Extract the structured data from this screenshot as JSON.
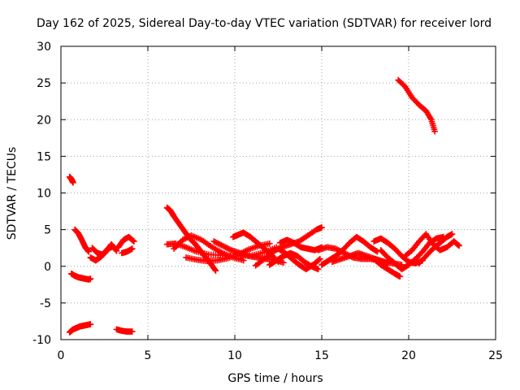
{
  "chart_data": {
    "type": "scatter",
    "title": "Day 162 of 2025, Sidereal Day-to-day VTEC variation (SDTVAR) for receiver lord",
    "xlabel": "GPS time / hours",
    "ylabel": "SDTVAR / TECUs",
    "xlim": [
      0,
      25
    ],
    "ylim": [
      -10,
      30
    ],
    "xticks": [
      0,
      5,
      10,
      15,
      20,
      25
    ],
    "yticks": [
      -10,
      -5,
      0,
      5,
      10,
      15,
      20,
      25,
      30
    ],
    "xtick_labels": [
      "0",
      "5",
      "10",
      "15",
      "20",
      "25"
    ],
    "ytick_labels": [
      "-10",
      "-5",
      "0",
      "5",
      "10",
      "15",
      "20",
      "25",
      "30"
    ],
    "grid": true,
    "marker": "plus",
    "color": "#ff0000",
    "series": [
      {
        "name": "s1",
        "x": [
          0.5,
          0.6,
          0.7
        ],
        "y": [
          12.2,
          11.9,
          11.4
        ]
      },
      {
        "name": "s2",
        "x": [
          0.6,
          0.8,
          1.0,
          1.2,
          1.4,
          1.6,
          1.7
        ],
        "y": [
          -1.0,
          -1.3,
          -1.5,
          -1.6,
          -1.7,
          -1.8,
          -1.7
        ]
      },
      {
        "name": "s3",
        "x": [
          0.5,
          0.7,
          0.9,
          1.1,
          1.3,
          1.5,
          1.7
        ],
        "y": [
          -9.0,
          -8.6,
          -8.4,
          -8.2,
          -8.1,
          -8.0,
          -7.9
        ]
      },
      {
        "name": "s4",
        "x": [
          0.8,
          1.0,
          1.2,
          1.4,
          1.6
        ],
        "y": [
          5.0,
          4.5,
          3.6,
          2.6,
          2.0
        ]
      },
      {
        "name": "s5",
        "x": [
          1.7,
          2.0,
          2.3,
          2.6,
          2.9,
          3.2
        ],
        "y": [
          1.2,
          0.8,
          1.3,
          2.0,
          3.0,
          2.1
        ]
      },
      {
        "name": "s6",
        "x": [
          1.8,
          2.1,
          2.4,
          2.7,
          3.0
        ],
        "y": [
          2.5,
          1.8,
          1.6,
          2.4,
          2.7
        ]
      },
      {
        "name": "s7",
        "x": [
          3.3,
          3.6,
          3.9,
          4.2
        ],
        "y": [
          2.6,
          3.6,
          4.0,
          3.4
        ]
      },
      {
        "name": "s8",
        "x": [
          3.5,
          3.8,
          4.1
        ],
        "y": [
          1.8,
          2.0,
          2.4
        ]
      },
      {
        "name": "s9",
        "x": [
          3.2,
          3.5,
          3.8,
          4.1
        ],
        "y": [
          -8.6,
          -8.8,
          -8.9,
          -8.9
        ]
      },
      {
        "name": "s10",
        "x": [
          6.1,
          6.3,
          6.5,
          6.8,
          7.1,
          7.4,
          7.7,
          8.0,
          8.3,
          8.6,
          8.9
        ],
        "y": [
          8.0,
          7.6,
          6.8,
          5.8,
          4.8,
          3.8,
          3.1,
          2.2,
          1.3,
          0.4,
          -0.6
        ]
      },
      {
        "name": "s11",
        "x": [
          6.1,
          6.6,
          7.2,
          7.8,
          8.5,
          9.3,
          10.2,
          11.0,
          11.7,
          12.4
        ],
        "y": [
          3.0,
          3.1,
          2.6,
          2.0,
          1.6,
          1.5,
          1.4,
          1.5,
          1.9,
          2.6
        ]
      },
      {
        "name": "s12",
        "x": [
          6.5,
          7.0,
          7.5,
          8.1,
          8.7,
          9.3,
          9.9,
          10.5
        ],
        "y": [
          2.4,
          3.6,
          4.2,
          3.6,
          2.6,
          1.8,
          1.2,
          0.8
        ]
      },
      {
        "name": "s13",
        "x": [
          7.2,
          7.8,
          8.4,
          9.0,
          9.6,
          10.2,
          10.8,
          11.4,
          12.0
        ],
        "y": [
          1.2,
          0.9,
          0.7,
          0.8,
          1.1,
          1.6,
          2.3,
          2.8,
          3.1
        ]
      },
      {
        "name": "s14",
        "x": [
          8.8,
          9.3,
          9.8,
          10.3,
          10.8,
          11.3,
          11.8,
          12.3,
          12.8
        ],
        "y": [
          3.4,
          2.8,
          2.2,
          1.8,
          1.4,
          1.2,
          1.0,
          0.9,
          0.5
        ]
      },
      {
        "name": "s15",
        "x": [
          9.9,
          10.2,
          10.5,
          10.9,
          11.3,
          11.7,
          12.1,
          12.5
        ],
        "y": [
          4.0,
          4.3,
          4.6,
          4.0,
          3.2,
          2.4,
          1.6,
          0.6
        ]
      },
      {
        "name": "s16",
        "x": [
          11.2,
          11.7,
          12.2,
          12.7,
          13.2,
          13.7,
          14.2,
          14.7,
          15.0
        ],
        "y": [
          0.1,
          1.0,
          2.0,
          2.6,
          3.0,
          3.4,
          4.2,
          5.0,
          5.3
        ]
      },
      {
        "name": "s17",
        "x": [
          12.6,
          13.0,
          13.4,
          13.8,
          14.2,
          14.6,
          15.0
        ],
        "y": [
          3.2,
          3.6,
          3.2,
          2.6,
          2.4,
          2.2,
          2.6
        ]
      },
      {
        "name": "s18",
        "x": [
          12.0,
          12.4,
          12.8,
          13.2,
          13.6,
          14.0,
          14.4,
          14.8
        ],
        "y": [
          0.2,
          0.8,
          1.4,
          1.8,
          1.4,
          0.6,
          0.0,
          -0.4
        ]
      },
      {
        "name": "s19",
        "x": [
          12.5,
          12.9,
          13.3,
          13.7,
          14.1,
          14.5,
          14.9
        ],
        "y": [
          2.4,
          1.8,
          1.0,
          0.2,
          -0.4,
          0.2,
          1.0
        ]
      },
      {
        "name": "s20",
        "x": [
          14.8,
          15.3,
          15.8,
          16.3,
          16.8,
          17.3,
          17.8,
          18.3,
          18.8
        ],
        "y": [
          2.2,
          2.6,
          2.4,
          1.8,
          1.2,
          1.0,
          1.0,
          0.8,
          0.4
        ]
      },
      {
        "name": "s21",
        "x": [
          15.0,
          15.4,
          15.8,
          16.2,
          16.6,
          17.0,
          17.4,
          17.8,
          18.2
        ],
        "y": [
          0.2,
          0.8,
          1.4,
          2.2,
          3.2,
          4.0,
          3.4,
          2.6,
          2.0
        ]
      },
      {
        "name": "s22",
        "x": [
          15.6,
          16.1,
          16.6,
          17.1,
          17.6,
          18.1,
          18.6,
          19.1,
          19.6
        ],
        "y": [
          0.6,
          1.0,
          1.4,
          1.8,
          1.4,
          1.0,
          0.6,
          0.4,
          0.2
        ]
      },
      {
        "name": "s23",
        "x": [
          18.0,
          18.4,
          18.8,
          19.2,
          19.6,
          20.0,
          20.4,
          20.8
        ],
        "y": [
          3.4,
          3.8,
          3.2,
          2.4,
          1.4,
          0.6,
          0.4,
          0.8
        ]
      },
      {
        "name": "s24",
        "x": [
          18.4,
          18.8,
          19.2,
          19.6,
          20.0,
          20.4,
          20.8,
          21.2,
          21.6,
          22.0
        ],
        "y": [
          2.2,
          1.2,
          0.4,
          -0.4,
          0.2,
          1.0,
          2.0,
          3.2,
          3.8,
          4.0
        ]
      },
      {
        "name": "s25",
        "x": [
          18.0,
          18.4,
          18.8,
          19.2,
          19.5
        ],
        "y": [
          1.0,
          0.2,
          -0.4,
          -1.0,
          -1.4
        ]
      },
      {
        "name": "s26",
        "x": [
          19.4,
          19.8,
          20.2,
          20.6,
          21.0,
          21.3,
          21.5
        ],
        "y": [
          25.4,
          24.5,
          23.0,
          22.0,
          21.2,
          20.0,
          18.4
        ]
      },
      {
        "name": "s27",
        "x": [
          19.8,
          20.2,
          20.6,
          21.0,
          21.4,
          21.8,
          22.2,
          22.6,
          22.9
        ],
        "y": [
          1.4,
          2.2,
          3.4,
          4.4,
          3.0,
          2.2,
          2.6,
          3.4,
          2.8
        ]
      },
      {
        "name": "s28",
        "x": [
          20.6,
          21.0,
          21.4,
          21.8,
          22.2,
          22.5
        ],
        "y": [
          0.4,
          1.4,
          2.4,
          3.2,
          4.0,
          4.4
        ]
      }
    ]
  }
}
